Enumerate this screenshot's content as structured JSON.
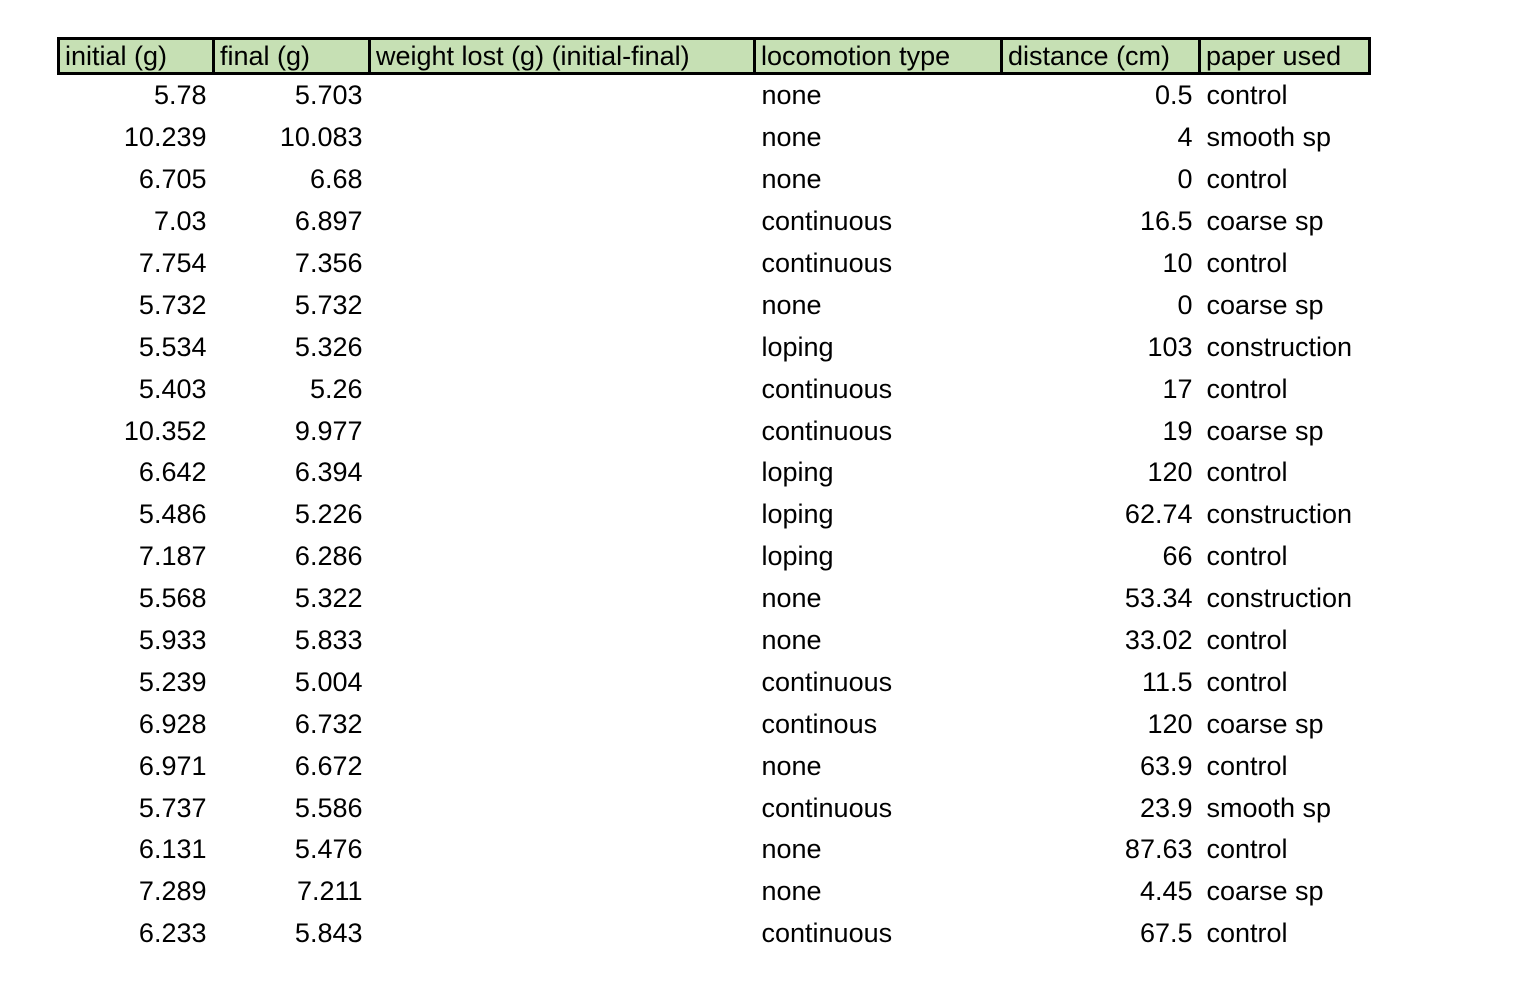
{
  "colors": {
    "header_fill": "#c6e0b4",
    "header_border": "#000000",
    "text": "#000000",
    "background": "#ffffff"
  },
  "table": {
    "columns": [
      {
        "label": "initial (g)",
        "align": "right"
      },
      {
        "label": "final (g)",
        "align": "right"
      },
      {
        "label": "weight lost (g) (initial-final)",
        "align": "left"
      },
      {
        "label": "locomotion type",
        "align": "left"
      },
      {
        "label": "distance (cm)",
        "align": "right"
      },
      {
        "label": "paper used",
        "align": "left"
      }
    ],
    "rows": [
      [
        "5.78",
        "5.703",
        "",
        "none",
        "0.5",
        "control"
      ],
      [
        "10.239",
        "10.083",
        "",
        "none",
        "4",
        "smooth sp"
      ],
      [
        "6.705",
        "6.68",
        "",
        "none",
        "0",
        "control"
      ],
      [
        "7.03",
        "6.897",
        "",
        "continuous",
        "16.5",
        "coarse sp"
      ],
      [
        "7.754",
        "7.356",
        "",
        "continuous",
        "10",
        "control"
      ],
      [
        "5.732",
        "5.732",
        "",
        "none",
        "0",
        "coarse sp"
      ],
      [
        "5.534",
        "5.326",
        "",
        "loping",
        "103",
        "construction"
      ],
      [
        "5.403",
        "5.26",
        "",
        "continuous",
        "17",
        "control"
      ],
      [
        "10.352",
        "9.977",
        "",
        "continuous",
        "19",
        "coarse sp"
      ],
      [
        "6.642",
        "6.394",
        "",
        "loping",
        "120",
        "control"
      ],
      [
        "5.486",
        "5.226",
        "",
        "loping",
        "62.74",
        "construction"
      ],
      [
        "7.187",
        "6.286",
        "",
        "loping",
        "66",
        "control"
      ],
      [
        "5.568",
        "5.322",
        "",
        "none",
        "53.34",
        "construction"
      ],
      [
        "5.933",
        "5.833",
        "",
        "none",
        "33.02",
        "control"
      ],
      [
        "5.239",
        "5.004",
        "",
        "continuous",
        "11.5",
        "control"
      ],
      [
        "6.928",
        "6.732",
        "",
        "continous",
        "120",
        "coarse sp"
      ],
      [
        "6.971",
        "6.672",
        "",
        "none",
        "63.9",
        "control"
      ],
      [
        "5.737",
        "5.586",
        "",
        "continuous",
        "23.9",
        "smooth sp"
      ],
      [
        "6.131",
        "5.476",
        "",
        "none",
        "87.63",
        "control"
      ],
      [
        "7.289",
        "7.211",
        "",
        "none",
        "4.45",
        "coarse sp"
      ],
      [
        "6.233",
        "5.843",
        "",
        "continuous",
        "67.5",
        "control"
      ]
    ]
  }
}
